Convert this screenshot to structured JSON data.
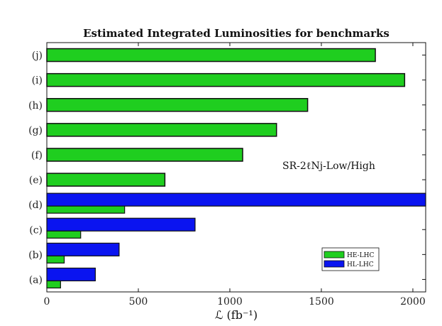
{
  "chart_data": {
    "type": "bar",
    "orientation": "horizontal",
    "title": "Estimated Integrated Luminosities for benchmarks",
    "xlabel": "ℒ (fb⁻¹)",
    "ylabel": "",
    "categories": [
      "(a)",
      "(b)",
      "(c)",
      "(d)",
      "(e)",
      "(f)",
      "(g)",
      "(h)",
      "(i)",
      "(j)"
    ],
    "xlim": [
      0,
      2070
    ],
    "xticks": [
      0,
      500,
      1000,
      1500,
      2000
    ],
    "grid": false,
    "legend_position": "lower-right",
    "annotation": "SR-2ℓNj-Low/High",
    "series": [
      {
        "name": "HE-LHC",
        "color": "#1fce1f",
        "values": [
          75,
          95,
          185,
          425,
          645,
          1070,
          1255,
          1425,
          1955,
          1795
        ]
      },
      {
        "name": "HL-LHC",
        "color": "#0a14f0",
        "values": [
          265,
          395,
          810,
          2070,
          null,
          null,
          null,
          null,
          null,
          null
        ]
      }
    ]
  }
}
